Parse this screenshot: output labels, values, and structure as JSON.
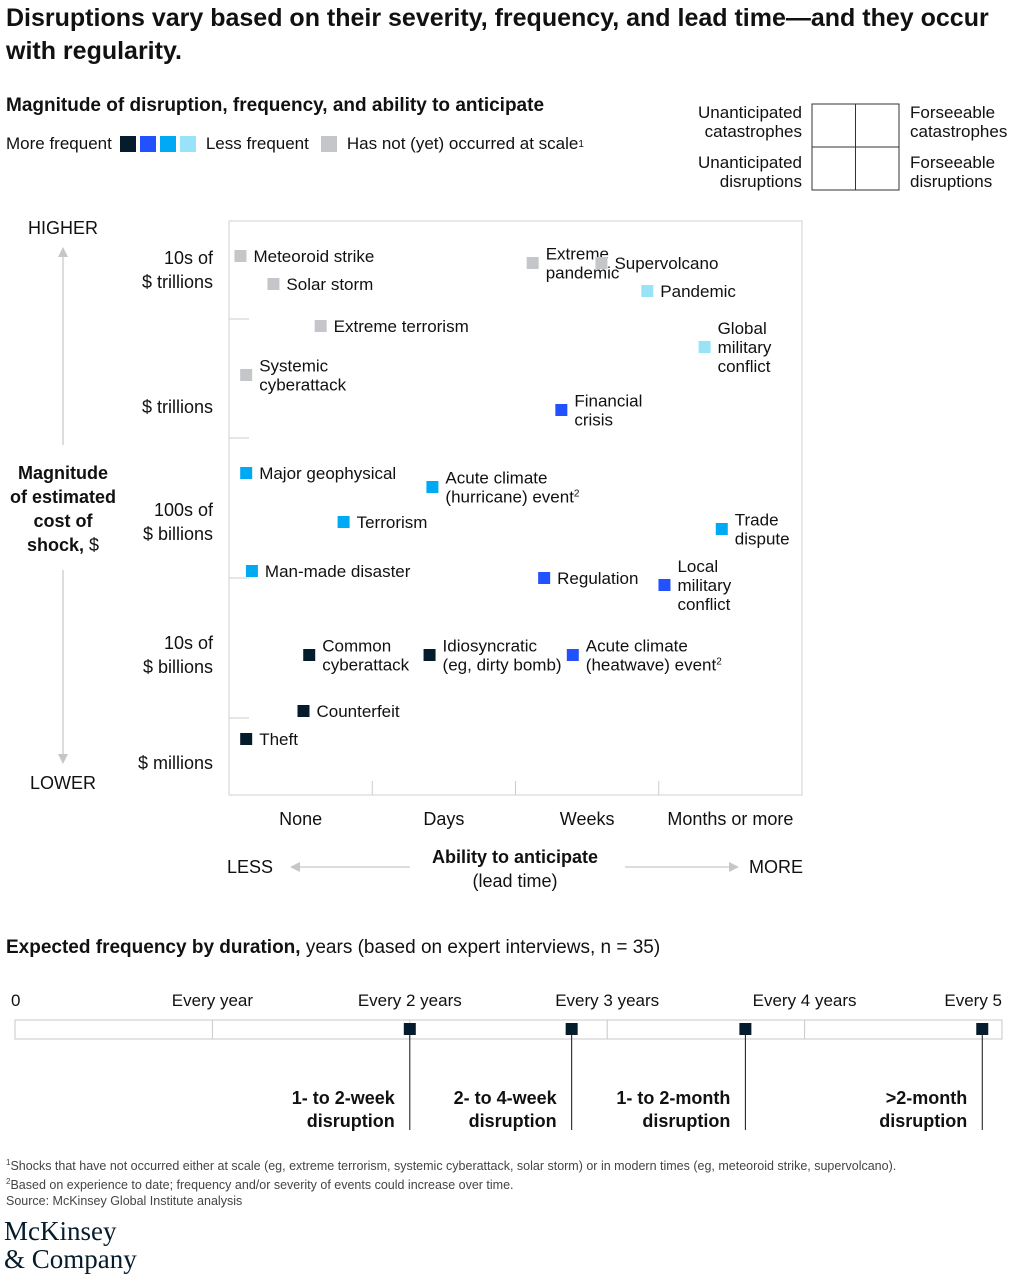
{
  "title": "Disruptions vary based on their severity, frequency, and lead time—and they occur with regularity.",
  "subtitle": "Magnitude of disruption, frequency, and ability to anticipate",
  "legend": {
    "more_frequent": "More frequent",
    "less_frequent": "Less frequent",
    "not_occurred": "Has not (yet) occurred at scale",
    "not_occurred_sup": "1",
    "colors": [
      "#051c2c",
      "#2251ff",
      "#00a9f4",
      "#99e3f8"
    ],
    "gray": "#c4c6c9"
  },
  "quadrant_key": {
    "top_left": [
      "Unanticipated",
      "catastrophes"
    ],
    "top_right": [
      "Forseeable",
      "catastrophes"
    ],
    "bottom_left": [
      "Unanticipated",
      "disruptions"
    ],
    "bottom_right": [
      "Forseeable",
      "disruptions"
    ]
  },
  "chart_data": [
    {
      "type": "scatter",
      "x_axis": {
        "title": "Ability to anticipate",
        "subtitle": "(lead time)",
        "categories": [
          "None",
          "Days",
          "Weeks",
          "Months or more"
        ],
        "low": "LESS",
        "high": "MORE"
      },
      "y_axis": {
        "title": [
          "Magnitude",
          "of estimated",
          "cost of"
        ],
        "title_last_bold": "shock,",
        "title_last_unit": " $",
        "levels": [
          [
            "10s of",
            "$ trillions"
          ],
          [
            "$ trillions"
          ],
          [
            "100s of",
            "$ billions"
          ],
          [
            "10s of",
            "$ billions"
          ],
          [
            "$ millions"
          ]
        ],
        "high": "HIGHER",
        "low": "LOWER"
      },
      "points": [
        {
          "label": [
            "Meteoroid strike"
          ],
          "freq": "gray",
          "x": 0.08,
          "y": 4.8
        },
        {
          "label": [
            "Solar storm"
          ],
          "freq": "gray",
          "x": 0.31,
          "y": 4.6
        },
        {
          "label": [
            "Extreme terrorism"
          ],
          "freq": "gray",
          "x": 0.64,
          "y": 4.3
        },
        {
          "label": [
            "Systemic",
            "cyberattack"
          ],
          "freq": "gray",
          "x": 0.12,
          "y": 3.95
        },
        {
          "label": [
            "Extreme",
            "pandemic"
          ],
          "freq": "gray",
          "x": 2.12,
          "y": 4.75
        },
        {
          "label": [
            "Supervolcano"
          ],
          "freq": "gray",
          "x": 2.6,
          "y": 4.75
        },
        {
          "label": [
            "Pandemic"
          ],
          "freq": "light",
          "x": 2.92,
          "y": 4.55
        },
        {
          "label": [
            "Global",
            "military",
            "conflict"
          ],
          "freq": "light",
          "x": 3.32,
          "y": 4.15
        },
        {
          "label": [
            "Financial",
            "crisis"
          ],
          "freq": "dark_blue",
          "x": 2.32,
          "y": 3.7
        },
        {
          "label": [
            "Major geophysical"
          ],
          "freq": "cyan",
          "x": 0.12,
          "y": 3.25
        },
        {
          "label": [
            "Acute climate",
            "(hurricane) event"
          ],
          "label_sup": "2",
          "freq": "cyan",
          "x": 1.42,
          "y": 3.15
        },
        {
          "label": [
            "Terrorism"
          ],
          "freq": "cyan",
          "x": 0.8,
          "y": 2.9
        },
        {
          "label": [
            "Trade",
            "dispute"
          ],
          "freq": "cyan",
          "x": 3.44,
          "y": 2.85
        },
        {
          "label": [
            "Man-made disaster"
          ],
          "freq": "cyan",
          "x": 0.16,
          "y": 2.55
        },
        {
          "label": [
            "Regulation"
          ],
          "freq": "dark_blue",
          "x": 2.2,
          "y": 2.5
        },
        {
          "label": [
            "Local",
            "military",
            "conflict"
          ],
          "freq": "dark_blue",
          "x": 3.04,
          "y": 2.45
        },
        {
          "label": [
            "Common",
            "cyberattack"
          ],
          "freq": "navy",
          "x": 0.56,
          "y": 1.95
        },
        {
          "label": [
            "Idiosyncratic",
            "(eg, dirty bomb)"
          ],
          "freq": "navy",
          "x": 1.4,
          "y": 1.95
        },
        {
          "label": [
            "Acute climate",
            "(heatwave) event"
          ],
          "label_sup": "2",
          "freq": "dark_blue",
          "x": 2.4,
          "y": 1.95
        },
        {
          "label": [
            "Counterfeit"
          ],
          "freq": "navy",
          "x": 0.52,
          "y": 1.55
        },
        {
          "label": [
            "Theft"
          ],
          "freq": "navy",
          "x": 0.12,
          "y": 1.35
        }
      ]
    },
    {
      "type": "timeline",
      "title_bold": "Expected frequency by duration,",
      "title_rest": " years (based on expert interviews, n = 35)",
      "ticks": [
        "0",
        "Every year",
        "Every 2 years",
        "Every 3 years",
        "Every 4 years",
        "Every 5"
      ],
      "markers": [
        {
          "label": [
            "1- to 2-week",
            "disruption"
          ],
          "years": 2.0
        },
        {
          "label": [
            "2- to 4-week",
            "disruption"
          ],
          "years": 2.82
        },
        {
          "label": [
            "1- to 2-month",
            "disruption"
          ],
          "years": 3.7
        },
        {
          "label": [
            ">2-month",
            "disruption"
          ],
          "years": 4.9
        }
      ]
    }
  ],
  "footnotes": {
    "n1_sup": "1",
    "n1": "Shocks that have not occurred either at scale (eg, extreme terrorism, systemic cyberattack, solar storm) or in modern times (eg, meteoroid strike, supervolcano).",
    "n2_sup": "2",
    "n2": "Based on experience to date; frequency and/or severity of events could increase over time.",
    "source": "Source: McKinsey Global Institute analysis"
  },
  "logo": [
    "McKinsey",
    "& Company"
  ]
}
